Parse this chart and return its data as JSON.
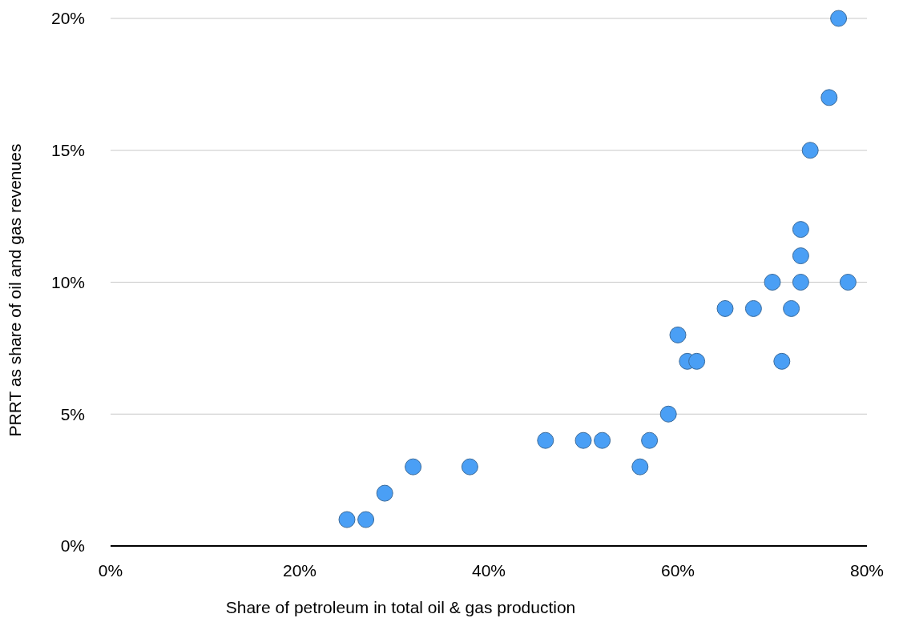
{
  "chart_data": {
    "type": "scatter",
    "xlabel": "Share of petroleum in total oil & gas production",
    "ylabel": "PRRT as share of oil and gas revenues",
    "x": [
      25,
      27,
      29,
      32,
      38,
      46,
      50,
      52,
      56,
      57,
      59,
      60,
      61,
      62,
      65,
      68,
      70,
      71,
      72,
      73,
      73,
      73,
      74,
      76,
      77,
      78
    ],
    "series": [
      {
        "color": "#4a9ff5",
        "values": [
          1,
          1,
          2,
          3,
          3,
          4,
          4,
          4,
          3,
          4,
          5,
          8,
          7,
          7,
          9,
          9,
          10,
          7,
          9,
          12,
          11,
          10,
          15,
          17,
          20,
          10
        ]
      }
    ],
    "xlim": [
      0,
      80
    ],
    "xticks": [
      {
        "value": 0,
        "label": "0%"
      },
      {
        "value": 20,
        "label": "20%"
      },
      {
        "value": 40,
        "label": "40%"
      },
      {
        "value": 60,
        "label": "60%"
      },
      {
        "value": 80,
        "label": "80%"
      }
    ],
    "ylim": [
      0,
      20
    ],
    "yticks": [
      {
        "value": 0,
        "label": "0%"
      },
      {
        "value": 5,
        "label": "5%"
      },
      {
        "value": 10,
        "label": "10%"
      },
      {
        "value": 15,
        "label": "15%"
      },
      {
        "value": 20,
        "label": "20%"
      }
    ],
    "grid": "y",
    "marker": "circle"
  }
}
